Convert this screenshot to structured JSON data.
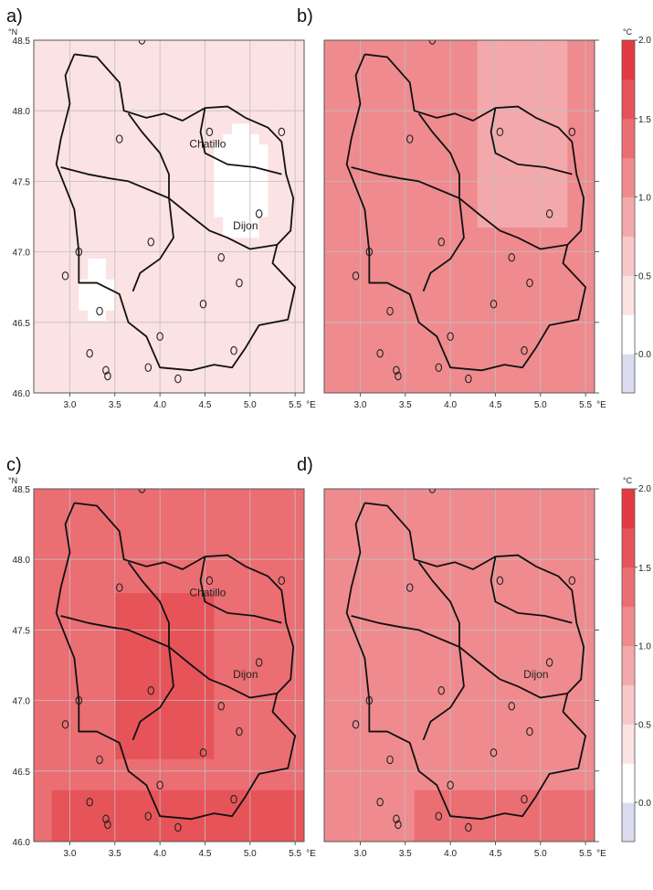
{
  "panels": [
    {
      "label": "a)",
      "towns": [
        "Chatillo",
        "Dijon"
      ]
    },
    {
      "label": "b)",
      "towns": []
    },
    {
      "label": "c)",
      "towns": [
        "Chatillo",
        "Dijon"
      ]
    },
    {
      "label": "d)",
      "towns": [
        "Dijon"
      ]
    }
  ],
  "axes": {
    "lat_unit": "°N",
    "lon_unit": "°E",
    "lat_ticks": [
      "46.0",
      "46.5",
      "47.0",
      "47.5",
      "48.0",
      "48.5"
    ],
    "lon_ticks": [
      "3.0",
      "3.5",
      "4.0",
      "4.5",
      "5.0",
      "5.5"
    ]
  },
  "colorbar": {
    "unit": "°C",
    "tick_labels": [
      "0.0",
      "0.5",
      "1.0",
      "1.5",
      "2.0"
    ],
    "range": [
      -0.25,
      2.0
    ],
    "step": 0.25,
    "colors": [
      "#dcdcf0",
      "#ffffff",
      "#fbe2e3",
      "#f7c7c9",
      "#f3a9ac",
      "#ef8b8f",
      "#eb6e73",
      "#e65459",
      "#e23a40"
    ]
  },
  "chart_data": {
    "type": "heatmap",
    "description_unit": "°C",
    "panels": [
      {
        "label": "a)",
        "typical_value": 0.45,
        "range": [
          0.1,
          0.6
        ]
      },
      {
        "label": "b)",
        "typical_value": 1.1,
        "range": [
          0.8,
          1.3
        ]
      },
      {
        "label": "c)",
        "typical_value": 1.5,
        "range": [
          1.0,
          1.9
        ]
      },
      {
        "label": "d)",
        "typical_value": 1.2,
        "range": [
          0.9,
          1.5
        ]
      }
    ]
  }
}
